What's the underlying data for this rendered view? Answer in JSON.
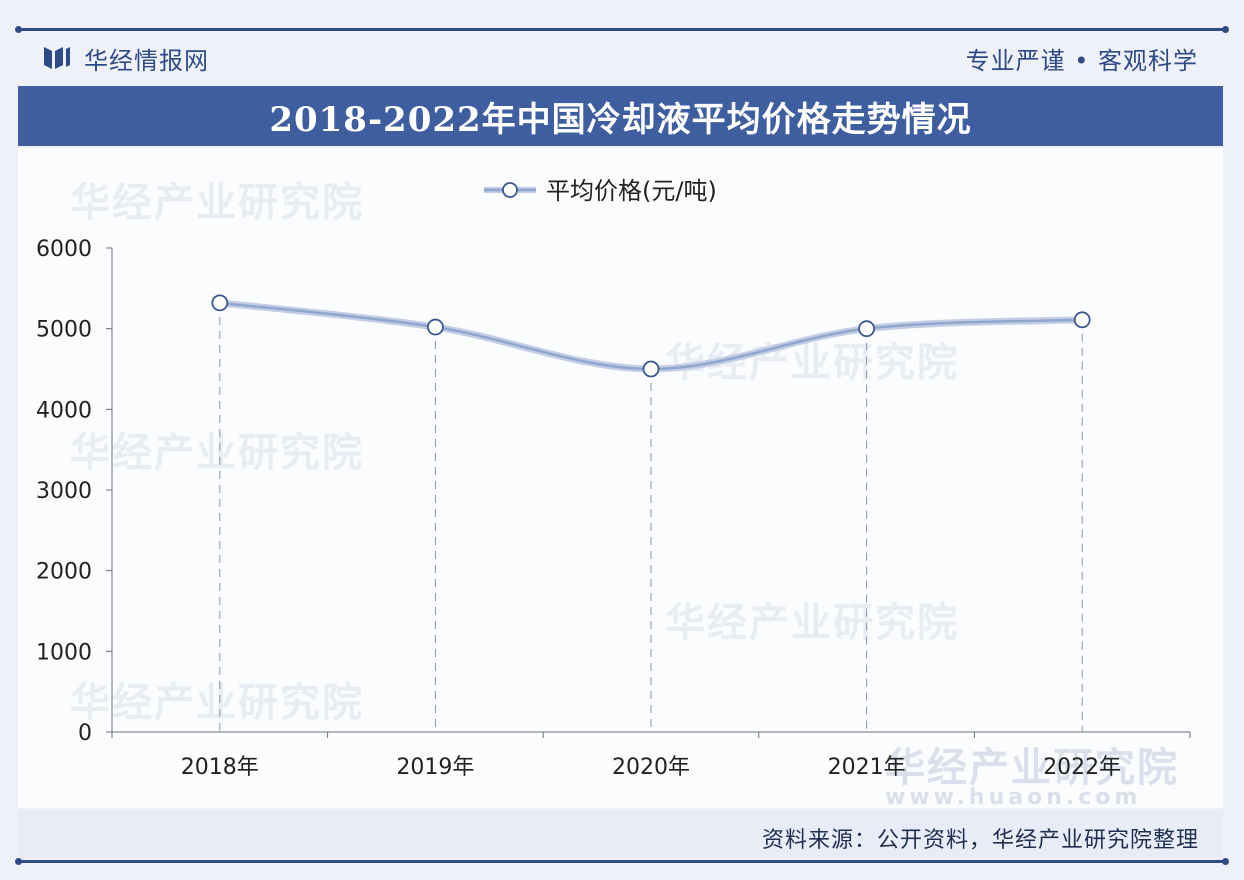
{
  "header": {
    "brand_name": "华经情报网",
    "slogan": "专业严谨 • 客观科学",
    "title": "2018-2022年中国冷却液平均价格走势情况"
  },
  "footer": {
    "source": "资料来源：公开资料，华经产业研究院整理"
  },
  "watermark": {
    "text": "华经产业研究院",
    "url": "www.huaon.com"
  },
  "colors": {
    "brand": "#2f4a86",
    "title_bar": "#3e5ea0",
    "line": "#8fa6cf",
    "marker_stroke": "#3b5690"
  },
  "chart_data": {
    "type": "line",
    "title": "",
    "xlabel": "",
    "ylabel": "",
    "categories": [
      "2018年",
      "2019年",
      "2020年",
      "2021年",
      "2022年"
    ],
    "series": [
      {
        "name": "平均价格(元/吨)",
        "values": [
          5320,
          5020,
          4500,
          5000,
          5110
        ]
      }
    ],
    "ylim": [
      0,
      6000
    ],
    "yticks": [
      0,
      1000,
      2000,
      3000,
      4000,
      5000,
      6000
    ],
    "legend": "top-center",
    "grid": false,
    "drop_lines": true,
    "smooth": true
  }
}
